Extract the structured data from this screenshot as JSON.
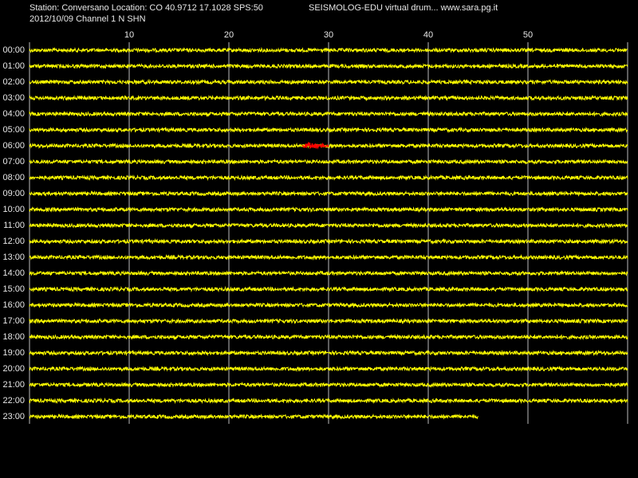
{
  "header": {
    "station": "Station: Conversano Location: CO 40.9712 17.1028 SPS:50",
    "title": "SEISMOLOG-EDU virtual drum... www.sara.pg.it",
    "date": "2012/10/09  Channel 1 N SHN"
  },
  "chart_data": {
    "type": "helicorder",
    "xlim": [
      0,
      60
    ],
    "xticks": [
      10,
      20,
      30,
      40,
      50
    ],
    "rows": [
      "00:00",
      "01:00",
      "02:00",
      "03:00",
      "04:00",
      "05:00",
      "06:00",
      "07:00",
      "08:00",
      "09:00",
      "10:00",
      "11:00",
      "12:00",
      "13:00",
      "14:00",
      "15:00",
      "16:00",
      "17:00",
      "18:00",
      "19:00",
      "20:00",
      "21:00",
      "22:00",
      "23:00"
    ],
    "trace_end": [
      60,
      60,
      60,
      60,
      60,
      60,
      60,
      60,
      60,
      60,
      60,
      60,
      60,
      60,
      60,
      60,
      60,
      60,
      60,
      60,
      60,
      60,
      60,
      45
    ],
    "color": "#ffff00",
    "events": [
      {
        "row": 6,
        "start": 27.4,
        "end": 30,
        "color": "#ff0000"
      }
    ]
  }
}
